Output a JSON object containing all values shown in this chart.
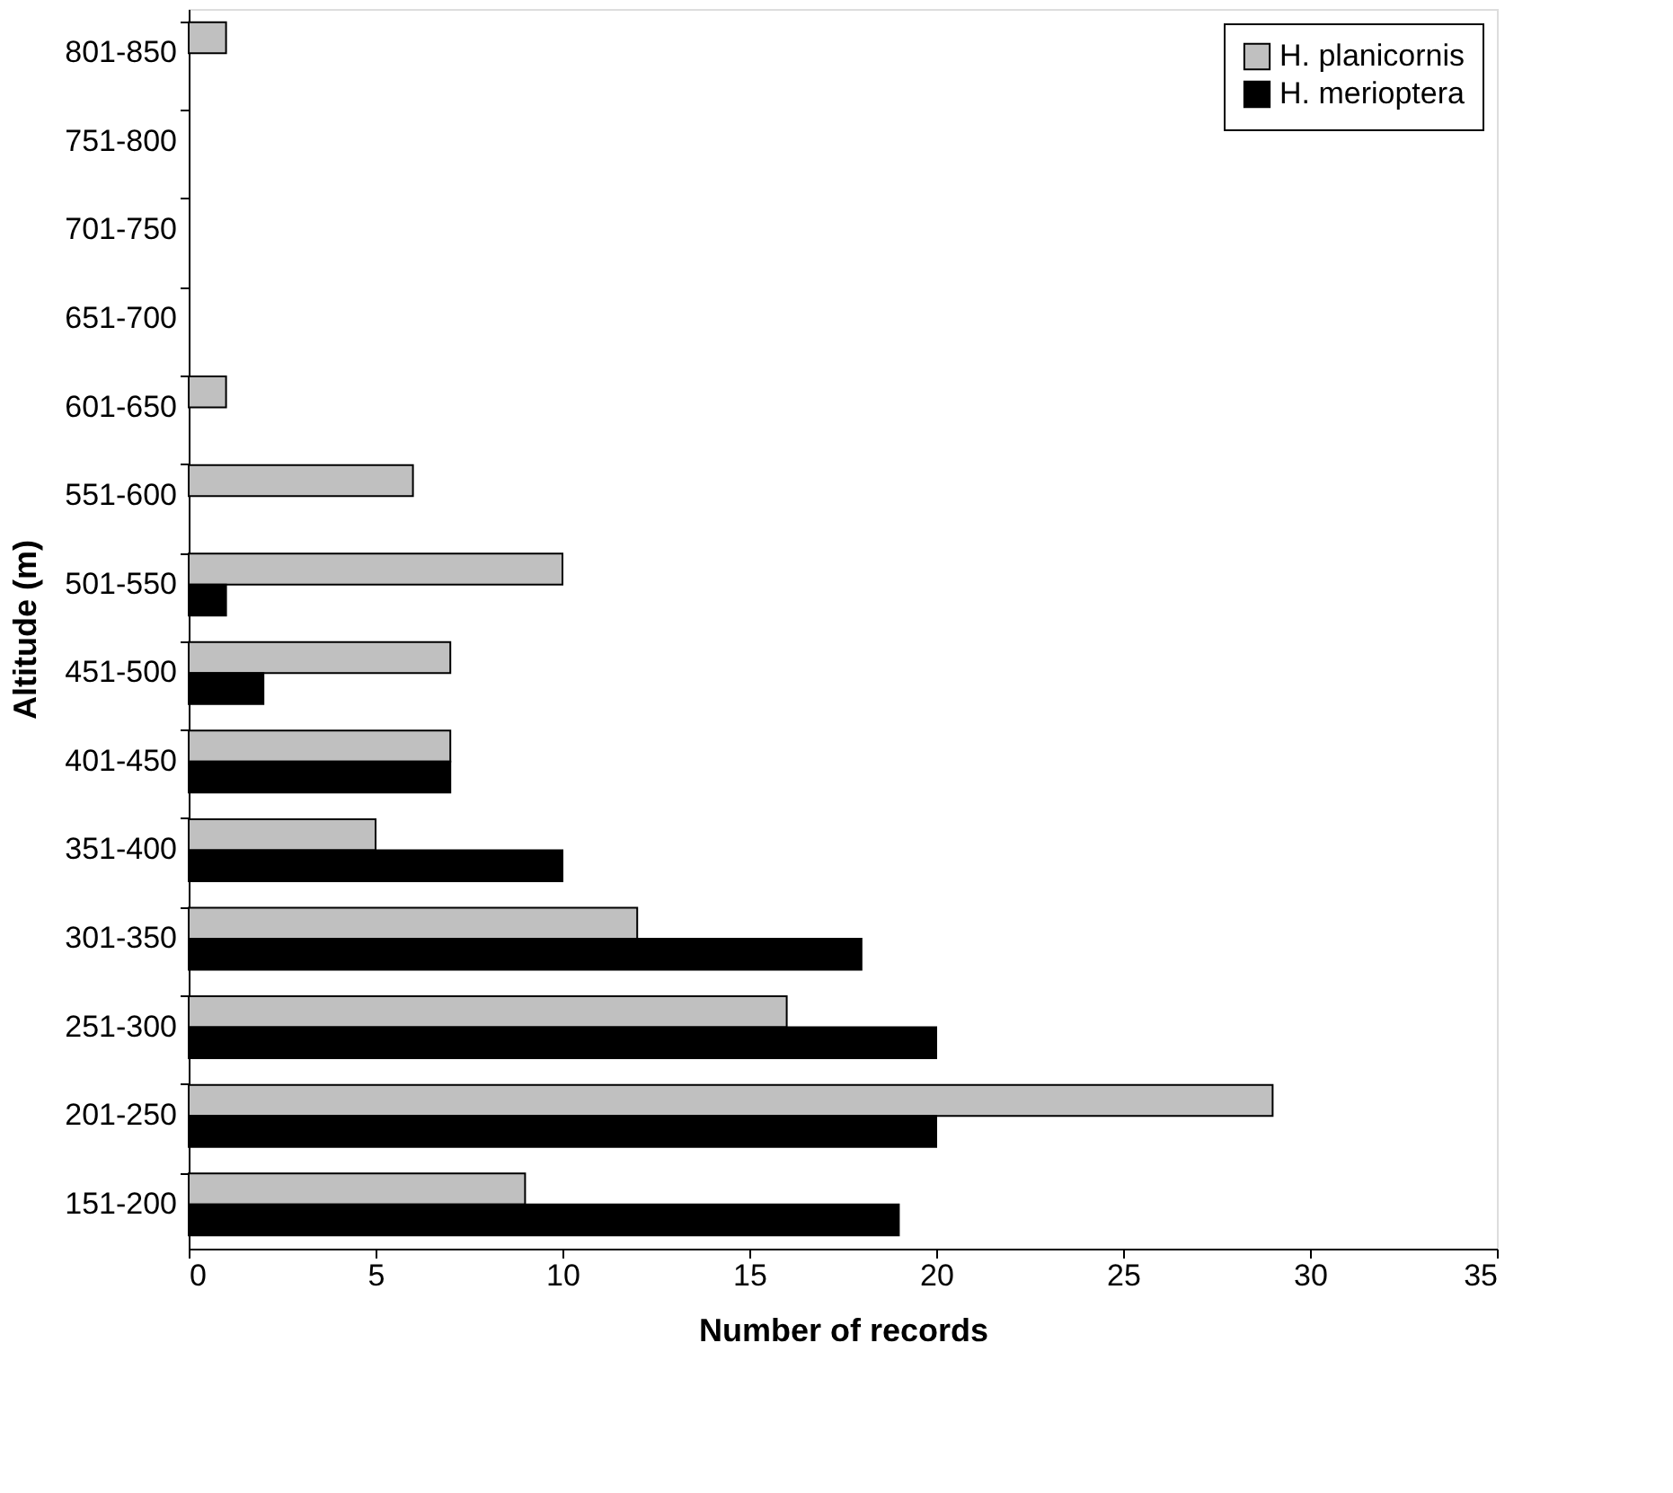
{
  "chart_data": {
    "type": "bar",
    "orientation": "horizontal",
    "xlabel": "Number of records",
    "ylabel": "Altitude (m)",
    "categories": [
      "801-850",
      "751-800",
      "701-750",
      "651-700",
      "601-650",
      "551-600",
      "501-550",
      "451-500",
      "401-450",
      "351-400",
      "301-350",
      "251-300",
      "201-250",
      "151-200"
    ],
    "series": [
      {
        "name": "H. planicornis",
        "color": "#c0c0c0",
        "values": [
          1,
          null,
          null,
          null,
          1,
          6,
          10,
          7,
          7,
          5,
          12,
          16,
          29,
          9
        ]
      },
      {
        "name": "H. merioptera",
        "color": "#000000",
        "values": [
          null,
          null,
          null,
          null,
          null,
          null,
          1,
          2,
          7,
          10,
          18,
          20,
          20,
          19
        ]
      }
    ],
    "xlim": [
      0,
      35
    ],
    "xticks": [
      0,
      5,
      10,
      15,
      20,
      25,
      30,
      35
    ],
    "grid": false,
    "legend": "top right"
  }
}
